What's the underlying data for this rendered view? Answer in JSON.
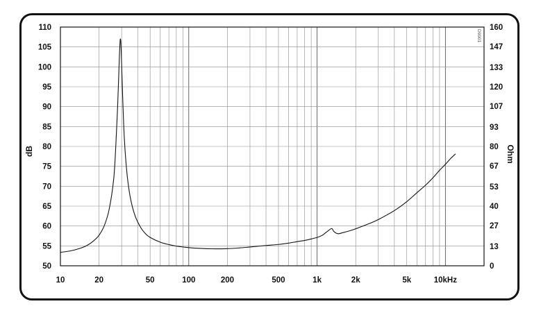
{
  "chart_data": {
    "type": "line",
    "title": "",
    "xlabel": "",
    "ylabel": "dB",
    "y2label": "Ohm",
    "xscale": "log",
    "xlim": [
      10,
      20000
    ],
    "ylim": [
      50,
      110
    ],
    "y2lim": [
      0,
      160
    ],
    "grid": true,
    "x_tick_labels": [
      {
        "value": 10,
        "label": "10"
      },
      {
        "value": 20,
        "label": "20"
      },
      {
        "value": 50,
        "label": "50"
      },
      {
        "value": 100,
        "label": "100"
      },
      {
        "value": 200,
        "label": "200"
      },
      {
        "value": 500,
        "label": "500"
      },
      {
        "value": 1000,
        "label": "1k"
      },
      {
        "value": 2000,
        "label": "2k"
      },
      {
        "value": 5000,
        "label": "5k"
      },
      {
        "value": 10000,
        "label": "10kHz"
      }
    ],
    "y_ticks": [
      110,
      105,
      100,
      95,
      90,
      85,
      80,
      75,
      70,
      65,
      60,
      55,
      50
    ],
    "y2_ticks": [
      160,
      147,
      133,
      120,
      107,
      93,
      80,
      67,
      53,
      40,
      27,
      13,
      0
    ],
    "corner_mark": "D9901",
    "series": [
      {
        "color": "#111111",
        "axis": "y2",
        "points": [
          [
            10,
            9
          ],
          [
            12,
            10
          ],
          [
            14,
            11.5
          ],
          [
            16,
            13.5
          ],
          [
            18,
            16.5
          ],
          [
            20,
            20.5
          ],
          [
            22,
            27
          ],
          [
            24,
            38
          ],
          [
            26,
            58
          ],
          [
            27,
            80
          ],
          [
            28,
            110
          ],
          [
            28.8,
            140
          ],
          [
            29.3,
            152
          ],
          [
            29.8,
            143
          ],
          [
            30.5,
            115
          ],
          [
            31.5,
            85
          ],
          [
            33,
            62
          ],
          [
            35,
            46
          ],
          [
            38,
            34
          ],
          [
            42,
            26
          ],
          [
            46,
            21.5
          ],
          [
            50,
            19
          ],
          [
            60,
            15.8
          ],
          [
            70,
            14.2
          ],
          [
            80,
            13.2
          ],
          [
            100,
            12.2
          ],
          [
            120,
            11.7
          ],
          [
            150,
            11.4
          ],
          [
            200,
            11.5
          ],
          [
            250,
            12
          ],
          [
            300,
            12.6
          ],
          [
            400,
            13.6
          ],
          [
            500,
            14.3
          ],
          [
            600,
            15.2
          ],
          [
            700,
            16.2
          ],
          [
            800,
            17
          ],
          [
            900,
            18
          ],
          [
            1000,
            19
          ],
          [
            1100,
            20.5
          ],
          [
            1200,
            23
          ],
          [
            1300,
            25
          ],
          [
            1350,
            23
          ],
          [
            1450,
            21.5
          ],
          [
            1600,
            22.3
          ],
          [
            1800,
            23.5
          ],
          [
            2000,
            24.8
          ],
          [
            2500,
            28
          ],
          [
            3000,
            31
          ],
          [
            4000,
            37
          ],
          [
            5000,
            43
          ],
          [
            6000,
            49
          ],
          [
            7000,
            54
          ],
          [
            8000,
            59
          ],
          [
            9000,
            64
          ],
          [
            10000,
            68
          ],
          [
            11000,
            72
          ],
          [
            12000,
            75
          ]
        ]
      }
    ]
  }
}
